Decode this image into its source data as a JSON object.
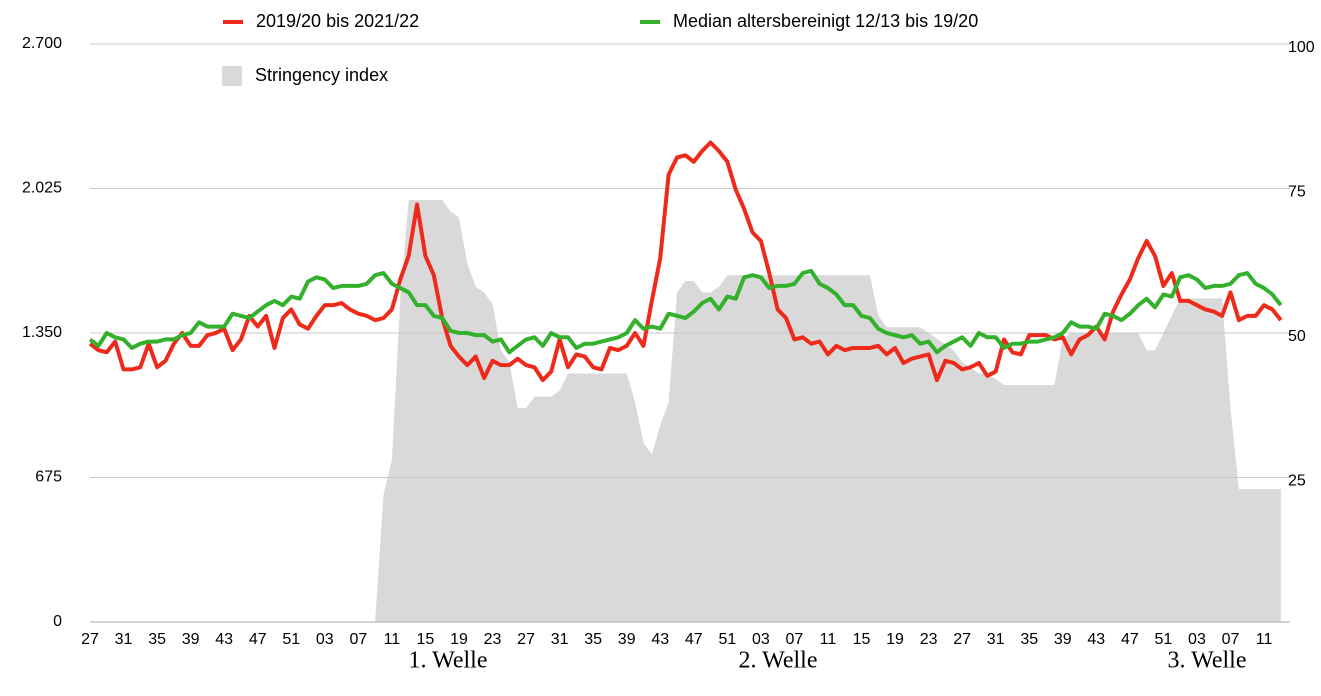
{
  "chart_data": {
    "type": "line",
    "categories": [
      "27",
      null,
      null,
      null,
      "31",
      null,
      null,
      null,
      "35",
      null,
      null,
      null,
      "39",
      null,
      null,
      null,
      "43",
      null,
      null,
      null,
      "47",
      null,
      null,
      null,
      "51",
      null,
      null,
      null,
      "03",
      null,
      null,
      null,
      "07",
      null,
      null,
      null,
      "11",
      null,
      null,
      null,
      "15",
      null,
      null,
      null,
      "19",
      null,
      null,
      null,
      "23",
      null,
      null,
      null,
      "27",
      null,
      null,
      null,
      "31",
      null,
      null,
      null,
      "35",
      null,
      null,
      null,
      "39",
      null,
      null,
      null,
      "43",
      null,
      null,
      null,
      "47",
      null,
      null,
      null,
      "51",
      null,
      null,
      null,
      "03",
      null,
      null,
      null,
      "07",
      null,
      null,
      null,
      "11",
      null,
      null,
      null,
      "15",
      null,
      null,
      null,
      "19",
      null,
      null,
      null,
      "23",
      null,
      null,
      null,
      "27",
      null,
      null,
      null,
      "31",
      null,
      null,
      null,
      "35",
      null,
      null,
      null,
      "39",
      null,
      null,
      null,
      "43",
      null,
      null,
      null,
      "47",
      null,
      null,
      null,
      "51",
      null,
      null,
      null,
      "03",
      null,
      null,
      null,
      "07",
      null,
      null,
      null,
      "11",
      null,
      null
    ],
    "series": [
      {
        "name": "Stringency index",
        "type": "area",
        "axis": "y2",
        "color": "#d9d9d9",
        "values": [
          0,
          0,
          0,
          0,
          0,
          0,
          0,
          0,
          0,
          0,
          0,
          0,
          0,
          0,
          0,
          0,
          0,
          0,
          0,
          0,
          0,
          0,
          0,
          0,
          0,
          0,
          0,
          0,
          0,
          0,
          0,
          0,
          0,
          0,
          0,
          22,
          28,
          56,
          73,
          73,
          73,
          73,
          73,
          71,
          70,
          62,
          58,
          57,
          55,
          47,
          45,
          37,
          37,
          39,
          39,
          39,
          40,
          43,
          43,
          43,
          43,
          43,
          43,
          43,
          43,
          38,
          31,
          29,
          34,
          38,
          57,
          59,
          59,
          57,
          57,
          58,
          60,
          60,
          60,
          60,
          60,
          60,
          60,
          60,
          60,
          60,
          60,
          60,
          60,
          60,
          60,
          60,
          60,
          60,
          53,
          51,
          51,
          51,
          51,
          51,
          50,
          49,
          48,
          47,
          45,
          44,
          43,
          43,
          42,
          41,
          41,
          41,
          41,
          41,
          41,
          41,
          49,
          50,
          50,
          50,
          50,
          50,
          50,
          50,
          50,
          50,
          47,
          47,
          50,
          53,
          56,
          56,
          56,
          56,
          56,
          56,
          37,
          23,
          23,
          23,
          23,
          23,
          23
        ]
      },
      {
        "name": "2019/20 bis 2021/22",
        "type": "line",
        "color": "#ee2a1b",
        "values": [
          1300,
          1270,
          1260,
          1310,
          1180,
          1180,
          1190,
          1300,
          1190,
          1220,
          1300,
          1350,
          1290,
          1290,
          1340,
          1350,
          1370,
          1270,
          1320,
          1430,
          1380,
          1430,
          1280,
          1420,
          1460,
          1390,
          1370,
          1430,
          1480,
          1480,
          1490,
          1460,
          1440,
          1430,
          1410,
          1420,
          1460,
          1600,
          1710,
          1950,
          1710,
          1620,
          1420,
          1290,
          1240,
          1200,
          1240,
          1140,
          1220,
          1200,
          1200,
          1230,
          1200,
          1190,
          1130,
          1170,
          1320,
          1190,
          1250,
          1240,
          1190,
          1180,
          1280,
          1270,
          1290,
          1350,
          1290,
          1500,
          1700,
          2090,
          2170,
          2180,
          2150,
          2200,
          2240,
          2200,
          2150,
          2020,
          1930,
          1820,
          1780,
          1630,
          1460,
          1420,
          1320,
          1330,
          1300,
          1310,
          1250,
          1290,
          1270,
          1280,
          1280,
          1280,
          1290,
          1250,
          1280,
          1210,
          1230,
          1240,
          1250,
          1130,
          1220,
          1210,
          1180,
          1190,
          1210,
          1150,
          1170,
          1320,
          1260,
          1250,
          1340,
          1340,
          1340,
          1320,
          1330,
          1250,
          1320,
          1340,
          1380,
          1320,
          1450,
          1530,
          1600,
          1700,
          1780,
          1710,
          1570,
          1630,
          1500,
          1500,
          1480,
          1460,
          1450,
          1430,
          1540,
          1410,
          1430,
          1430,
          1480,
          1460,
          1410
        ]
      },
      {
        "name": "Median altersbereinigt 12/13 bis 19/20",
        "type": "line",
        "color": "#33b02c",
        "values": [
          1320,
          1290,
          1350,
          1330,
          1320,
          1280,
          1300,
          1310,
          1310,
          1320,
          1320,
          1340,
          1350,
          1400,
          1380,
          1380,
          1380,
          1440,
          1430,
          1420,
          1450,
          1480,
          1500,
          1480,
          1520,
          1510,
          1590,
          1610,
          1600,
          1560,
          1570,
          1570,
          1570,
          1580,
          1620,
          1630,
          1580,
          1560,
          1540,
          1480,
          1480,
          1430,
          1420,
          1360,
          1350,
          1350,
          1340,
          1340,
          1310,
          1320,
          1260,
          1290,
          1320,
          1330,
          1290,
          1350,
          1330,
          1330,
          1280,
          1300,
          1300,
          1310,
          1320,
          1330,
          1350,
          1410,
          1370,
          1380,
          1370,
          1440,
          1430,
          1420,
          1450,
          1490,
          1510,
          1460,
          1520,
          1510,
          1610,
          1620,
          1610,
          1560,
          1570,
          1570,
          1580,
          1630,
          1640,
          1580,
          1560,
          1530,
          1480,
          1480,
          1430,
          1420,
          1370,
          1350,
          1340,
          1330,
          1340,
          1300,
          1310,
          1260,
          1290,
          1310,
          1330,
          1290,
          1350,
          1330,
          1330,
          1280,
          1300,
          1300,
          1310,
          1310,
          1320,
          1330,
          1350,
          1400,
          1380,
          1380,
          1370,
          1440,
          1430,
          1410,
          1440,
          1480,
          1510,
          1470,
          1530,
          1520,
          1610,
          1620,
          1600,
          1560,
          1570,
          1570,
          1580,
          1620,
          1630,
          1580,
          1560,
          1530,
          1480
        ]
      }
    ],
    "ylim": [
      0,
      2700
    ],
    "yticks": [
      0,
      675,
      {
        "value": 1350,
        "label": "1.350"
      },
      {
        "value": 2025,
        "label": "2.025"
      },
      {
        "value": 2700,
        "label": "2.700"
      }
    ],
    "y2lim": [
      0,
      100
    ],
    "y2ticks": [
      25,
      50,
      75,
      100
    ],
    "grid": true,
    "annotations": [
      "1. Welle",
      "2. Welle",
      "3. Welle"
    ]
  }
}
